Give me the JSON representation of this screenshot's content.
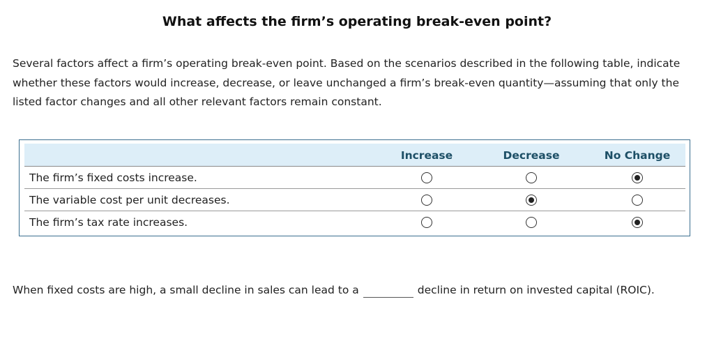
{
  "title": "What affects the firm’s operating break-even point?",
  "intro": "Several factors affect a firm’s operating break-even point. Based on the scenarios described in the following table, indicate whether these factors would increase, decrease, or leave unchanged a firm’s break-even quantity—assuming that only the listed factor changes and all other relevant factors remain constant.",
  "table": {
    "columns": [
      "Increase",
      "Decrease",
      "No Change"
    ],
    "rows": [
      {
        "label": "The firm’s fixed costs increase.",
        "selected": "No Change"
      },
      {
        "label": "The variable cost per unit decreases.",
        "selected": "Decrease"
      },
      {
        "label": "The firm’s tax rate increases.",
        "selected": "No Change"
      }
    ]
  },
  "bottom": {
    "before": "When fixed costs are high, a small decline in sales can lead to a",
    "blank_value": "",
    "after": "decline in return on invested capital (ROIC)."
  }
}
